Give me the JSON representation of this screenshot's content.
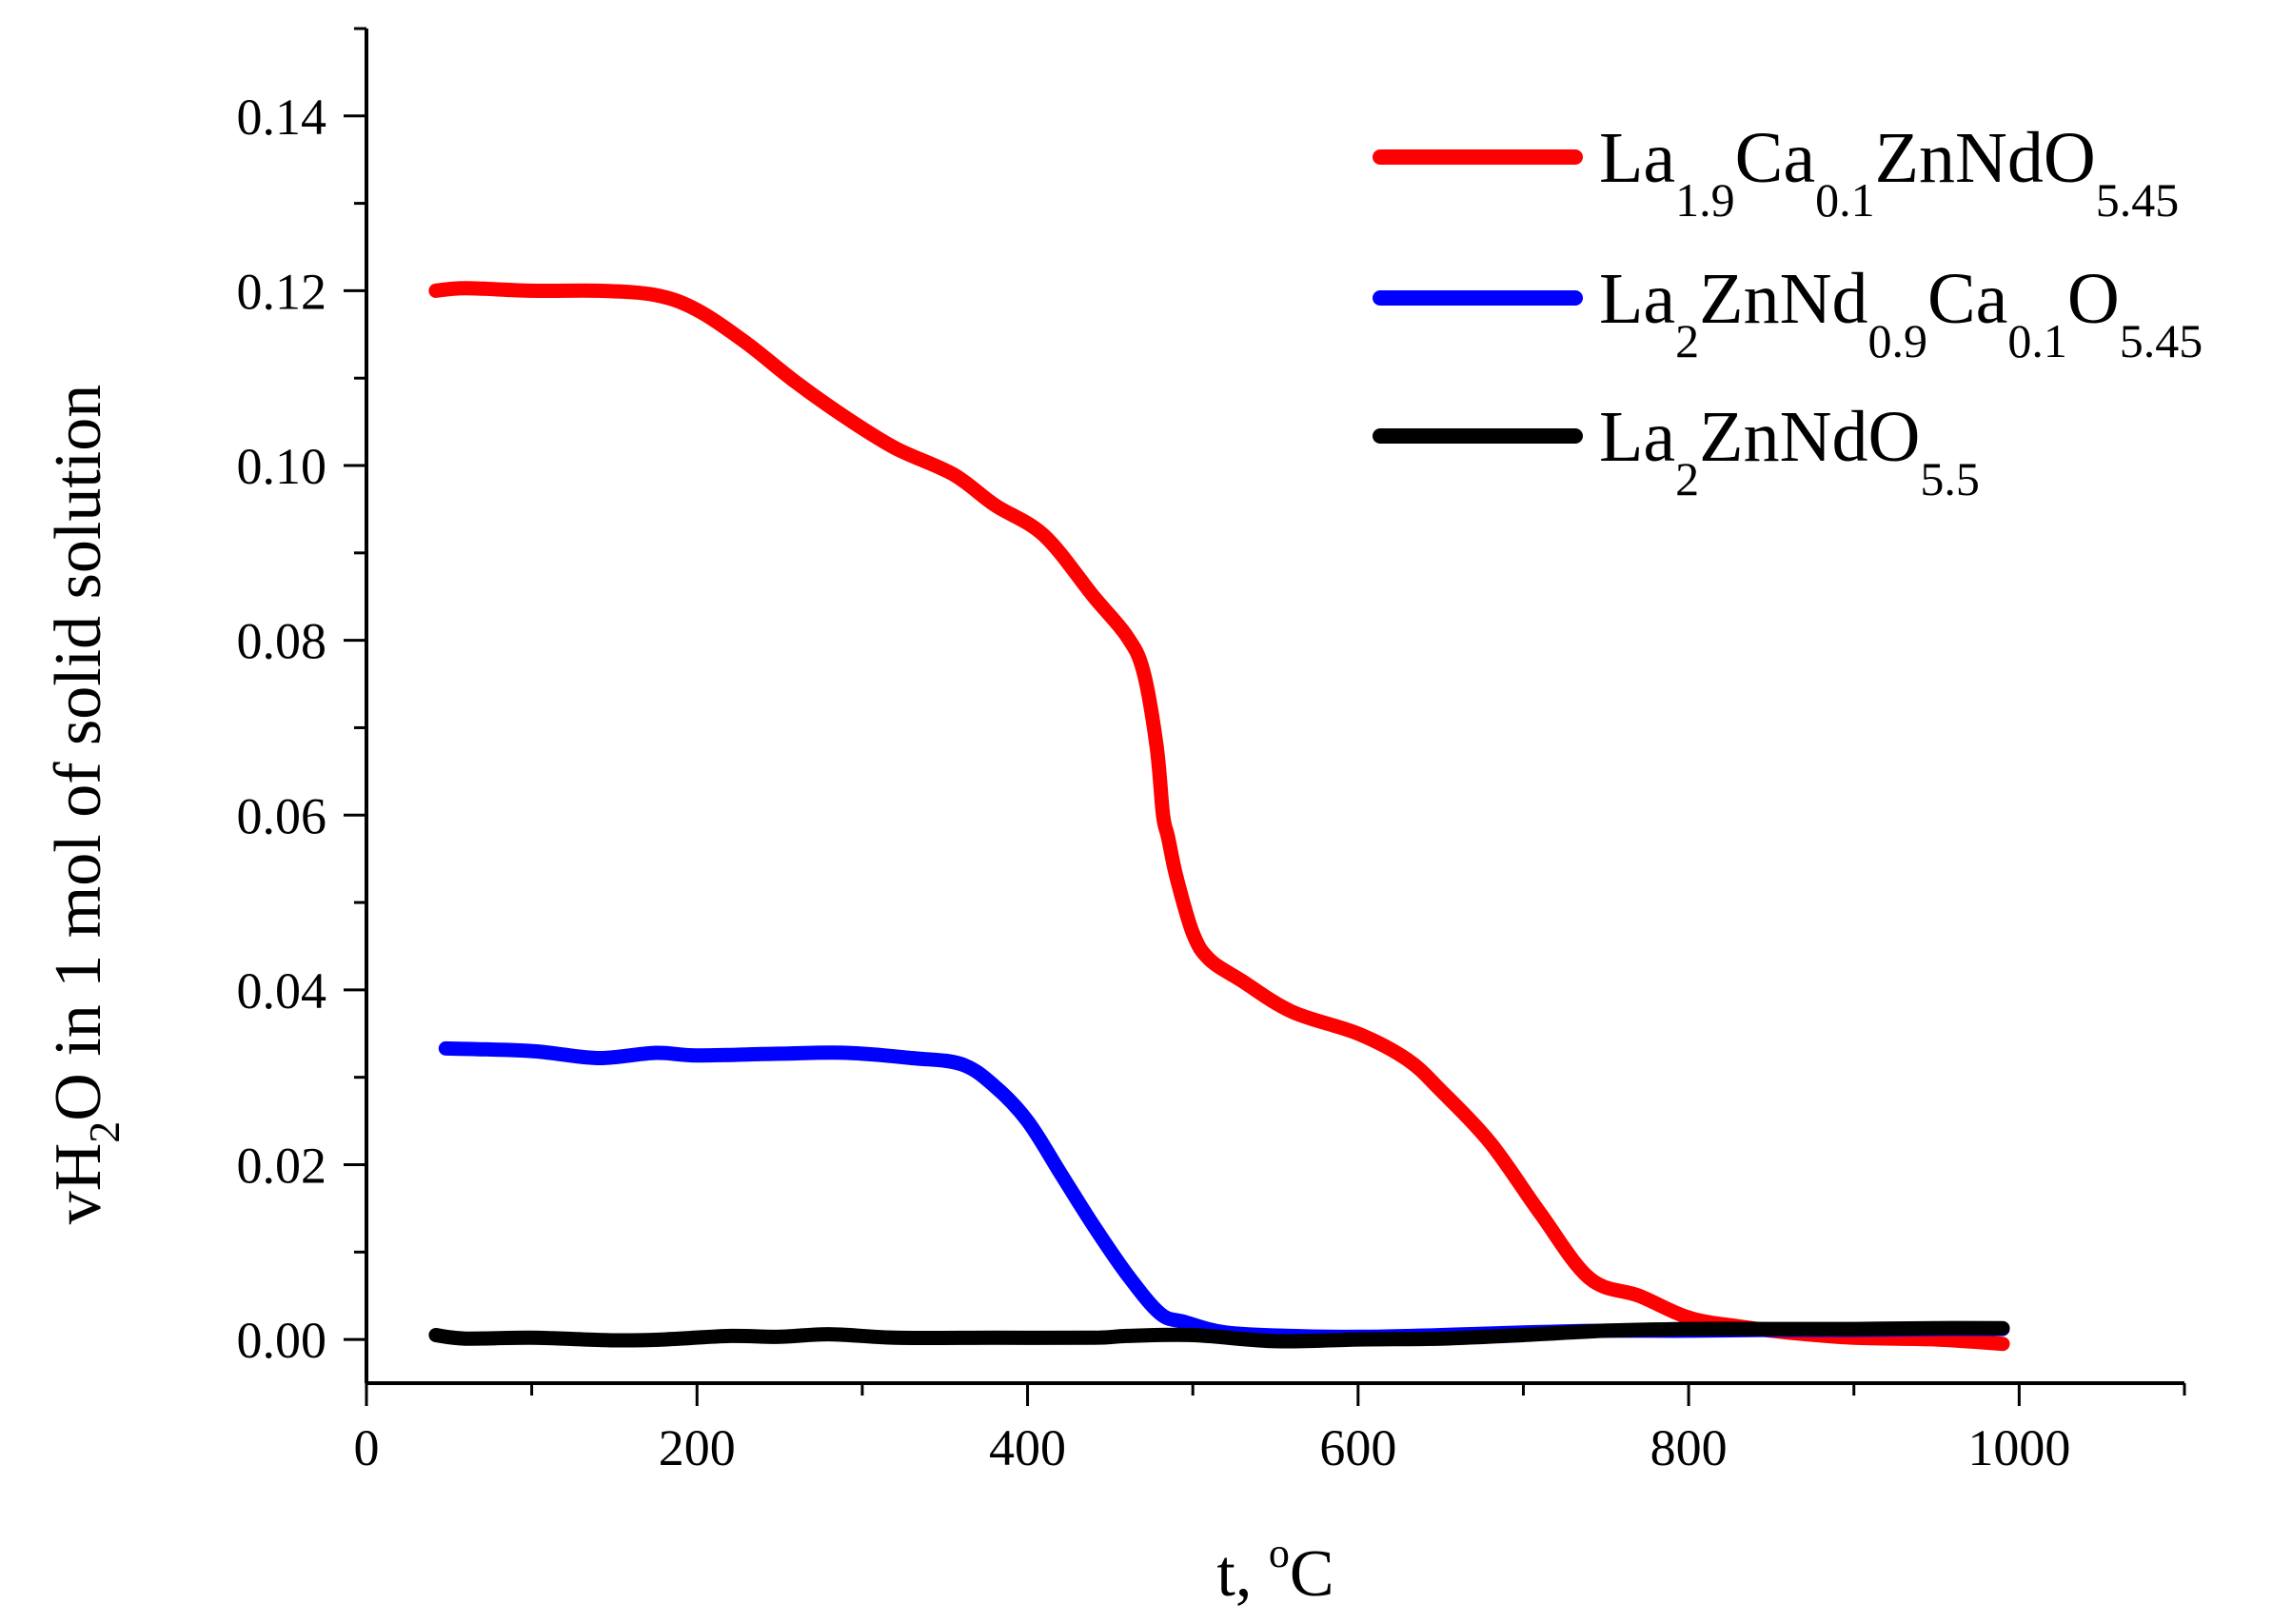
{
  "chart_data": {
    "type": "line",
    "xlabel": {
      "main": "t, ",
      "sup": "o",
      "tail": "C"
    },
    "ylabel": {
      "prefix": "vH",
      "sub": "2",
      "suffix": "O in 1 mol  of solid solution"
    },
    "xlim": [
      0,
      1100
    ],
    "ylim": [
      -0.005,
      0.15
    ],
    "x_ticks": [
      0,
      200,
      400,
      600,
      800,
      1000
    ],
    "x_tick_labels": [
      "0",
      "200",
      "400",
      "600",
      "800",
      "1000"
    ],
    "y_ticks": [
      0.0,
      0.02,
      0.04,
      0.06,
      0.08,
      0.1,
      0.12,
      0.14
    ],
    "y_tick_labels": [
      "0.00",
      "0.02",
      "0.04",
      "0.06",
      "0.08",
      "0.10",
      "0.12",
      "0.14"
    ],
    "legend_position": "top-right",
    "series": [
      {
        "name": "La1.9Ca0.1ZnNdO5.45",
        "color": "#ff0000",
        "legend_parts": [
          {
            "t": "La",
            "sub": false
          },
          {
            "t": "1.9",
            "sub": true
          },
          {
            "t": "Ca",
            "sub": false
          },
          {
            "t": "0.1",
            "sub": true
          },
          {
            "t": "ZnNdO",
            "sub": false
          },
          {
            "t": "5.45",
            "sub": true
          }
        ],
        "x": [
          42,
          60,
          100,
          140,
          175,
          200,
          230,
          260,
          290,
          320,
          355,
          380,
          410,
          440,
          460,
          470,
          478,
          482,
          485,
          490,
          500,
          510,
          530,
          560,
          600,
          630,
          650,
          680,
          710,
          740,
          770,
          800,
          830,
          860,
          900,
          950,
          990
        ],
        "y": [
          0.12,
          0.1203,
          0.12,
          0.12,
          0.1195,
          0.1178,
          0.114,
          0.1095,
          0.1055,
          0.102,
          0.099,
          0.0955,
          0.092,
          0.085,
          0.0805,
          0.0765,
          0.068,
          0.06,
          0.0575,
          0.053,
          0.0465,
          0.0435,
          0.041,
          0.0375,
          0.035,
          0.032,
          0.0285,
          0.0225,
          0.0145,
          0.007,
          0.005,
          0.0025,
          0.0015,
          0.0008,
          0.0002,
          0.0,
          -0.0005
        ]
      },
      {
        "name": "La2ZnNd0.9Ca0.1O5.45",
        "color": "#0000ff",
        "legend_parts": [
          {
            "t": "La",
            "sub": false
          },
          {
            "t": "2",
            "sub": true
          },
          {
            "t": "ZnNd",
            "sub": false
          },
          {
            "t": "0.9",
            "sub": true
          },
          {
            "t": "Ca",
            "sub": false
          },
          {
            "t": "0.1",
            "sub": true
          },
          {
            "t": "O",
            "sub": false
          },
          {
            "t": "5.45",
            "sub": true
          }
        ],
        "x": [
          48,
          100,
          140,
          175,
          200,
          250,
          290,
          330,
          360,
          380,
          400,
          420,
          440,
          460,
          480,
          495,
          520,
          560,
          600,
          650,
          700,
          750,
          800,
          850,
          900,
          950,
          990
        ],
        "y": [
          0.0333,
          0.033,
          0.0322,
          0.0328,
          0.0325,
          0.0327,
          0.0328,
          0.0322,
          0.0315,
          0.029,
          0.025,
          0.019,
          0.013,
          0.0075,
          0.003,
          0.002,
          0.0008,
          0.0004,
          0.0003,
          0.0005,
          0.0008,
          0.001,
          0.001,
          0.0011,
          0.0011,
          0.0012,
          0.0012
        ]
      },
      {
        "name": "La2ZnNdO5.5",
        "color": "#000000",
        "legend_parts": [
          {
            "t": "La",
            "sub": false
          },
          {
            "t": "2",
            "sub": true
          },
          {
            "t": "ZnNdO",
            "sub": false
          },
          {
            "t": "5.5",
            "sub": true
          }
        ],
        "x": [
          42,
          60,
          100,
          150,
          180,
          220,
          250,
          280,
          320,
          380,
          440,
          460,
          500,
          550,
          600,
          650,
          700,
          750,
          800,
          850,
          900,
          950,
          990
        ],
        "y": [
          0.0005,
          0.0001,
          0.0002,
          -0.0001,
          0.0,
          0.0004,
          0.0003,
          0.0006,
          0.0002,
          0.0002,
          0.0002,
          0.0004,
          0.0005,
          -0.0002,
          0.0,
          0.0001,
          0.0005,
          0.001,
          0.0012,
          0.0012,
          0.0012,
          0.0013,
          0.0013
        ]
      }
    ]
  }
}
